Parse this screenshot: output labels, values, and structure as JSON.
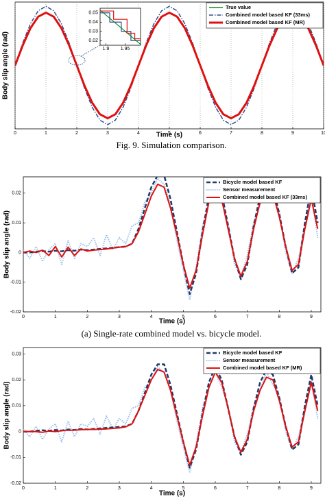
{
  "figure_caption": "Fig. 9.  Simulation comparison.",
  "subfigure_caption": "(a)  Single-rate combined model vs. bicycle model.",
  "chart_data": [
    {
      "type": "line",
      "x_label": "Time (s)",
      "y_label": "Body slip angle (rad)",
      "grid": true,
      "legend": "upper right",
      "xlim": [
        0,
        10
      ],
      "ylim": [
        -0.3,
        0.3
      ],
      "xticks": [
        0,
        1,
        2,
        3,
        4,
        5,
        6,
        7,
        8,
        9,
        10
      ],
      "x": [
        0,
        0.25,
        0.5,
        0.75,
        1,
        1.25,
        1.5,
        1.75,
        2,
        2.25,
        2.5,
        2.75,
        3,
        3.25,
        3.5,
        3.75,
        4,
        4.25,
        4.5,
        4.75,
        5,
        5.25,
        5.5,
        5.75,
        6,
        6.25,
        6.5,
        6.75,
        7,
        7.25,
        7.5,
        7.75,
        8,
        8.25,
        8.5,
        8.75,
        9,
        9.25,
        9.5,
        9.75,
        10
      ],
      "series": [
        {
          "name": "True value",
          "color": "#1a8a1a",
          "style": "solid",
          "width": 1.5,
          "values": [
            0,
            0.0957,
            0.1768,
            0.231,
            0.25,
            0.231,
            0.1768,
            0.0957,
            0,
            -0.0957,
            -0.1768,
            -0.231,
            -0.25,
            -0.231,
            -0.1768,
            -0.0957,
            0,
            0.0957,
            0.1768,
            0.231,
            0.25,
            0.231,
            0.1768,
            0.0957,
            0,
            -0.0957,
            -0.1768,
            -0.231,
            -0.25,
            -0.231,
            -0.1768,
            -0.0957,
            0,
            0.0957,
            0.1768,
            0.231,
            0.25,
            0.231,
            0.1768,
            0.0957,
            0
          ]
        },
        {
          "name": "Combined model based KF (33ms)",
          "color": "#2b4f8a",
          "style": "dashdot",
          "width": 1.5,
          "values": [
            0,
            0.1072,
            0.198,
            0.2587,
            0.28,
            0.2587,
            0.198,
            0.1072,
            0,
            -0.1072,
            -0.198,
            -0.2587,
            -0.28,
            -0.2587,
            -0.198,
            -0.1072,
            0,
            0.1072,
            0.198,
            0.2587,
            0.28,
            0.2587,
            0.198,
            0.1072,
            0,
            -0.1072,
            -0.198,
            -0.2587,
            -0.28,
            -0.2587,
            -0.198,
            -0.1072,
            0,
            0.1072,
            0.198,
            0.2587,
            0.28,
            0.2587,
            0.198,
            0.1072,
            0
          ]
        },
        {
          "name": "Combined model based KF (MR)",
          "color": "#e01010",
          "style": "solid",
          "width": 3,
          "values": [
            0,
            0.0957,
            0.1768,
            0.231,
            0.25,
            0.231,
            0.1768,
            0.0957,
            0,
            -0.0957,
            -0.1768,
            -0.231,
            -0.25,
            -0.231,
            -0.1768,
            -0.0957,
            0,
            0.0957,
            0.1768,
            0.231,
            0.25,
            0.231,
            0.1768,
            0.0957,
            0,
            -0.0957,
            -0.1768,
            -0.231,
            -0.25,
            -0.231,
            -0.1768,
            -0.0957,
            0,
            0.0957,
            0.1768,
            0.231,
            0.25,
            0.231,
            0.1768,
            0.0957,
            0
          ]
        }
      ]
    },
    {
      "type": "line",
      "xlim": [
        1.885,
        1.99
      ],
      "ylim": [
        0.015,
        0.055
      ],
      "xticks": [
        1.9,
        1.95
      ],
      "yticks": [
        0.02,
        0.03,
        0.04,
        0.05
      ],
      "series": [
        {
          "color": "#1a8a1a",
          "style": "solid",
          "width": 1.2,
          "x": [
            1.885,
            1.99
          ],
          "values": [
            0.053,
            0.016
          ]
        },
        {
          "color": "#2b4f8a",
          "style": "solid",
          "width": 1.2,
          "x": [
            1.885,
            1.91,
            1.91,
            1.94,
            1.94,
            1.965,
            1.965,
            1.99
          ],
          "values": [
            0.05,
            0.05,
            0.04,
            0.04,
            0.03,
            0.03,
            0.02,
            0.02
          ]
        },
        {
          "color": "#e01010",
          "style": "solid",
          "width": 1.2,
          "x": [
            1.885,
            1.92,
            1.92,
            1.955,
            1.955,
            1.975,
            1.975,
            1.99
          ],
          "values": [
            0.052,
            0.052,
            0.043,
            0.043,
            0.028,
            0.028,
            0.022,
            0.022
          ]
        }
      ]
    },
    {
      "type": "line",
      "x_label": "Time (s)",
      "y_label": "Body slip angle (rad)",
      "legend": "upper right",
      "xlim": [
        0,
        9.3
      ],
      "ylim": [
        -0.02,
        0.0255
      ],
      "xticks": [
        0,
        1,
        2,
        3,
        4,
        5,
        6,
        7,
        8,
        9
      ],
      "yticks": [
        -0.02,
        -0.01,
        0,
        0.01,
        0.02
      ],
      "x": [
        0,
        0.2,
        0.4,
        0.6,
        0.8,
        1,
        1.2,
        1.4,
        1.6,
        1.8,
        2,
        2.2,
        2.4,
        2.6,
        2.8,
        3,
        3.2,
        3.4,
        3.6,
        3.8,
        4,
        4.2,
        4.4,
        4.6,
        4.8,
        5,
        5.2,
        5.4,
        5.6,
        5.8,
        6,
        6.2,
        6.4,
        6.6,
        6.8,
        7,
        7.2,
        7.4,
        7.6,
        7.8,
        8,
        8.2,
        8.4,
        8.6,
        8.8,
        9,
        9.2
      ],
      "series": [
        {
          "name": "Bicycle model based KF",
          "color": "#1f3a66",
          "style": "dashed",
          "width": 2.5,
          "values": [
            0,
            0,
            0.0003,
            0.0005,
            0.0003,
            0.0006,
            0.0004,
            0.0008,
            0.0006,
            0.001,
            0.0008,
            0.001,
            0.0012,
            0.0014,
            0.0016,
            0.0018,
            0.002,
            0.003,
            0.008,
            0.015,
            0.022,
            0.026,
            0.026,
            0.018,
            0.007,
            -0.004,
            -0.014,
            -0.007,
            0.007,
            0.019,
            0.025,
            0.02,
            0.009,
            -0.002,
            -0.009,
            -0.004,
            0.009,
            0.019,
            0.024,
            0.022,
            0.013,
            0.002,
            -0.007,
            -0.005,
            0.01,
            0.022,
            0.01
          ]
        },
        {
          "name": "Sensor measurement",
          "color": "#9cc3ea",
          "style": "dotted",
          "width": 2,
          "values": [
            0.001,
            -0.002,
            0.002,
            -0.003,
            0.001,
            0.003,
            -0.004,
            0.004,
            -0.002,
            0.003,
            0.002,
            0.005,
            -0.001,
            0.006,
            0.001,
            0.005,
            0.003,
            0.009,
            0.01,
            0.017,
            0.02,
            0.025,
            0.023,
            0.016,
            0.004,
            -0.006,
            -0.016,
            -0.005,
            0.009,
            0.017,
            0.023,
            0.017,
            0.01,
            -0.004,
            -0.008,
            -0.001,
            0.01,
            0.016,
            0.023,
            0.018,
            0.014,
            0,
            -0.007,
            -0.002,
            0.009,
            0.02,
            0.005
          ]
        },
        {
          "name": "Combined model based KF (33ms)",
          "color": "#e01010",
          "style": "solid",
          "width": 2,
          "values": [
            0,
            0.0005,
            0,
            0.0008,
            -0.001,
            0.002,
            -0.0015,
            0.0018,
            -0.001,
            0.0012,
            0.0005,
            0.0008,
            0.001,
            0.0012,
            0.0015,
            0.0018,
            0.002,
            0.003,
            0.007,
            0.013,
            0.019,
            0.023,
            0.022,
            0.015,
            0.006,
            -0.004,
            -0.012,
            -0.006,
            0.006,
            0.017,
            0.022,
            0.018,
            0.008,
            -0.002,
            -0.008,
            -0.003,
            0.008,
            0.017,
            0.021,
            0.02,
            0.012,
            0.002,
            -0.006,
            -0.004,
            0.008,
            0.018,
            0.008
          ]
        }
      ]
    },
    {
      "type": "line",
      "x_label": "Time (s)",
      "y_label": "Body slip angle (rad)",
      "legend": "upper right",
      "xlim": [
        0,
        9.3
      ],
      "ylim": [
        -0.02,
        0.0325
      ],
      "xticks": [
        0,
        1,
        2,
        3,
        4,
        5,
        6,
        7,
        8,
        9
      ],
      "yticks": [
        -0.02,
        -0.01,
        0,
        0.01,
        0.02,
        0.03
      ],
      "x": [
        0,
        0.2,
        0.4,
        0.6,
        0.8,
        1,
        1.2,
        1.4,
        1.6,
        1.8,
        2,
        2.2,
        2.4,
        2.6,
        2.8,
        3,
        3.2,
        3.4,
        3.6,
        3.8,
        4,
        4.2,
        4.4,
        4.6,
        4.8,
        5,
        5.2,
        5.4,
        5.6,
        5.8,
        6,
        6.2,
        6.4,
        6.6,
        6.8,
        7,
        7.2,
        7.4,
        7.6,
        7.8,
        8,
        8.2,
        8.4,
        8.6,
        8.8,
        9,
        9.2
      ],
      "series": [
        {
          "name": "Bicycle model based KF",
          "color": "#1f3a66",
          "style": "dashed",
          "width": 2.5,
          "values": [
            0,
            0,
            0.0003,
            0.0005,
            0.0003,
            0.0006,
            0.0004,
            0.0008,
            0.0006,
            0.001,
            0.0008,
            0.001,
            0.0012,
            0.0014,
            0.0016,
            0.0018,
            0.002,
            0.003,
            0.008,
            0.015,
            0.022,
            0.026,
            0.026,
            0.018,
            0.007,
            -0.004,
            -0.014,
            -0.007,
            0.007,
            0.019,
            0.025,
            0.02,
            0.009,
            -0.002,
            -0.009,
            -0.004,
            0.009,
            0.019,
            0.024,
            0.022,
            0.013,
            0.002,
            -0.007,
            -0.005,
            0.01,
            0.022,
            0.01
          ]
        },
        {
          "name": "Sensor measurement",
          "color": "#9cc3ea",
          "style": "dotted",
          "width": 2,
          "values": [
            0.001,
            -0.002,
            0.002,
            -0.003,
            0.001,
            0.003,
            -0.004,
            0.004,
            -0.002,
            0.003,
            0.002,
            0.005,
            -0.001,
            0.006,
            0.001,
            0.005,
            0.003,
            0.009,
            0.01,
            0.017,
            0.02,
            0.025,
            0.023,
            0.016,
            0.004,
            -0.006,
            -0.016,
            -0.005,
            0.009,
            0.017,
            0.023,
            0.017,
            0.01,
            -0.004,
            -0.008,
            -0.001,
            0.01,
            0.016,
            0.023,
            0.018,
            0.014,
            0,
            -0.007,
            -0.002,
            0.009,
            0.02,
            0.005
          ]
        },
        {
          "name": "Combined model based KF (MR)",
          "color": "#e01010",
          "style": "solid",
          "width": 2,
          "values": [
            0,
            0,
            0,
            -0.0003,
            0.0002,
            0,
            0.0003,
            0.0005,
            0.0005,
            0.0007,
            0.0008,
            0.0008,
            0.0009,
            0.001,
            0.0012,
            0.0014,
            0.0018,
            0.003,
            0.008,
            0.014,
            0.02,
            0.024,
            0.023,
            0.016,
            0.006,
            -0.004,
            -0.013,
            -0.006,
            0.006,
            0.017,
            0.023,
            0.019,
            0.009,
            -0.002,
            -0.008,
            -0.003,
            0.008,
            0.016,
            0.021,
            0.02,
            0.012,
            0.002,
            -0.006,
            -0.004,
            0.008,
            0.019,
            0.008
          ]
        }
      ]
    }
  ]
}
